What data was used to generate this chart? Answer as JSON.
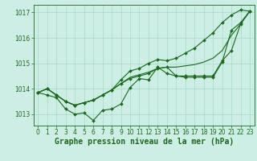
{
  "bg_color": "#cceee4",
  "grid_color": "#aaddcc",
  "line_color": "#1a6b1a",
  "xlabel": "Graphe pression niveau de la mer (hPa)",
  "ylim": [
    1012.55,
    1017.3
  ],
  "xlim": [
    -0.5,
    23.5
  ],
  "yticks": [
    1013,
    1014,
    1015,
    1016,
    1017
  ],
  "xticks": [
    0,
    1,
    2,
    3,
    4,
    5,
    6,
    7,
    8,
    9,
    10,
    11,
    12,
    13,
    14,
    15,
    16,
    17,
    18,
    19,
    20,
    21,
    22,
    23
  ],
  "series": [
    {
      "x": [
        0,
        1,
        2,
        3,
        4,
        5,
        6,
        7,
        8,
        9,
        10,
        11,
        12,
        13,
        14,
        15,
        16,
        17,
        18,
        19,
        20,
        21,
        22,
        23
      ],
      "y": [
        1013.85,
        1013.75,
        1013.65,
        1013.2,
        1013.0,
        1013.05,
        1012.75,
        1013.15,
        1013.2,
        1013.4,
        1014.05,
        1014.4,
        1014.35,
        1014.85,
        1014.6,
        1014.5,
        1014.45,
        1014.45,
        1014.45,
        1014.45,
        1015.05,
        1016.3,
        1016.6,
        1017.05
      ],
      "marker": true
    },
    {
      "x": [
        0,
        1,
        2,
        3,
        4,
        5,
        6,
        7,
        8,
        9,
        10,
        11,
        12,
        13,
        14,
        15,
        16,
        17,
        18,
        19,
        20,
        21,
        22,
        23
      ],
      "y": [
        1013.85,
        1014.0,
        1013.75,
        1013.5,
        1013.35,
        1013.45,
        1013.55,
        1013.75,
        1013.95,
        1014.2,
        1014.45,
        1014.55,
        1014.65,
        1014.8,
        1014.85,
        1014.85,
        1014.9,
        1014.95,
        1015.05,
        1015.2,
        1015.5,
        1016.1,
        1016.55,
        1017.05
      ],
      "marker": false
    },
    {
      "x": [
        0,
        1,
        2,
        3,
        4,
        5,
        6,
        7,
        8,
        9,
        10,
        11,
        12,
        13,
        14,
        15,
        16,
        17,
        18,
        19,
        20,
        21,
        22,
        23
      ],
      "y": [
        1013.85,
        1014.0,
        1013.75,
        1013.5,
        1013.35,
        1013.45,
        1013.55,
        1013.75,
        1013.95,
        1014.35,
        1014.7,
        1014.8,
        1015.0,
        1015.15,
        1015.1,
        1015.2,
        1015.4,
        1015.6,
        1015.9,
        1016.2,
        1016.6,
        1016.9,
        1017.1,
        1017.05
      ],
      "marker": true
    },
    {
      "x": [
        0,
        1,
        2,
        3,
        4,
        5,
        6,
        7,
        8,
        9,
        10,
        11,
        12,
        13,
        14,
        15,
        16,
        17,
        18,
        19,
        20,
        21,
        22,
        23
      ],
      "y": [
        1013.85,
        1014.0,
        1013.75,
        1013.5,
        1013.35,
        1013.45,
        1013.55,
        1013.75,
        1013.95,
        1014.2,
        1014.4,
        1014.5,
        1014.6,
        1014.8,
        1014.85,
        1014.5,
        1014.5,
        1014.5,
        1014.5,
        1014.5,
        1015.1,
        1015.5,
        1016.55,
        1017.05
      ],
      "marker": true
    }
  ],
  "xlabel_fontsize": 7,
  "tick_fontsize": 5.5
}
